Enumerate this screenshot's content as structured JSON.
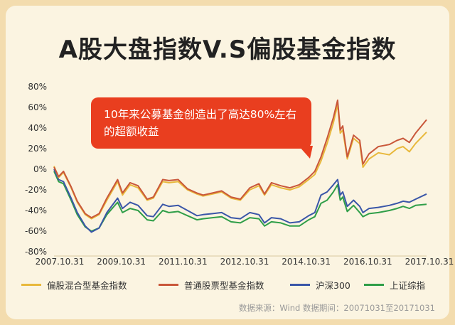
{
  "title": "A股大盘指数V.S偏股基金指数",
  "callout": "10年来公募基金创造出了高达80%左右的超额收益",
  "source": "数据来源：Wind   数据期间：20071031至20171031",
  "chart_data": {
    "type": "line",
    "x_ticks": [
      "2007.10.31",
      "2009.10.31",
      "2011.10.31",
      "2012.10.31",
      "2014.10.31",
      "2016.10.31",
      "2017.10.31"
    ],
    "xlim": [
      "2007-10-31",
      "2017-10-31"
    ],
    "y_ticks": [
      "80%",
      "60%",
      "40%",
      "20%",
      "0%",
      "-20%",
      "-40%",
      "-60%",
      "-80%"
    ],
    "ylim": [
      -80,
      80
    ],
    "legend_position": "bottom",
    "series": [
      {
        "name": "偏股混合型基金指数",
        "color": "#e8b83b",
        "points": [
          [
            "2007-10-31",
            3
          ],
          [
            "2007-12-15",
            -8
          ],
          [
            "2008-02-01",
            -3
          ],
          [
            "2008-04-15",
            -18
          ],
          [
            "2008-06-15",
            -32
          ],
          [
            "2008-09-01",
            -44
          ],
          [
            "2008-11-01",
            -48
          ],
          [
            "2009-01-15",
            -44
          ],
          [
            "2009-04-01",
            -30
          ],
          [
            "2009-07-15",
            -12
          ],
          [
            "2009-09-01",
            -25
          ],
          [
            "2009-11-15",
            -15
          ],
          [
            "2010-02-01",
            -18
          ],
          [
            "2010-05-01",
            -30
          ],
          [
            "2010-07-01",
            -28
          ],
          [
            "2010-10-01",
            -12
          ],
          [
            "2010-12-01",
            -13
          ],
          [
            "2011-03-01",
            -12
          ],
          [
            "2011-06-01",
            -20
          ],
          [
            "2011-09-01",
            -24
          ],
          [
            "2011-10-31",
            -26
          ],
          [
            "2012-02-01",
            -24
          ],
          [
            "2012-05-01",
            -22
          ],
          [
            "2012-08-01",
            -28
          ],
          [
            "2012-10-31",
            -30
          ],
          [
            "2013-02-01",
            -20
          ],
          [
            "2013-05-01",
            -16
          ],
          [
            "2013-06-25",
            -25
          ],
          [
            "2013-09-01",
            -15
          ],
          [
            "2013-12-01",
            -18
          ],
          [
            "2014-03-01",
            -20
          ],
          [
            "2014-06-01",
            -17
          ],
          [
            "2014-09-01",
            -10
          ],
          [
            "2014-10-31",
            -5
          ],
          [
            "2014-12-31",
            8
          ],
          [
            "2015-03-01",
            25
          ],
          [
            "2015-05-01",
            45
          ],
          [
            "2015-06-12",
            63
          ],
          [
            "2015-07-08",
            35
          ],
          [
            "2015-08-01",
            38
          ],
          [
            "2015-09-15",
            10
          ],
          [
            "2015-11-15",
            30
          ],
          [
            "2016-01-15",
            25
          ],
          [
            "2016-02-15",
            2
          ],
          [
            "2016-04-15",
            10
          ],
          [
            "2016-07-15",
            16
          ],
          [
            "2016-10-31",
            14
          ],
          [
            "2017-01-15",
            20
          ],
          [
            "2017-03-15",
            22
          ],
          [
            "2017-05-15",
            17
          ],
          [
            "2017-07-15",
            25
          ],
          [
            "2017-10-31",
            36
          ]
        ]
      },
      {
        "name": "普通股票型基金指数",
        "color": "#c9573a",
        "points": [
          [
            "2007-10-31",
            2
          ],
          [
            "2007-12-15",
            -7
          ],
          [
            "2008-02-01",
            -2
          ],
          [
            "2008-04-15",
            -17
          ],
          [
            "2008-06-15",
            -31
          ],
          [
            "2008-09-01",
            -43
          ],
          [
            "2008-11-01",
            -47
          ],
          [
            "2009-01-15",
            -43
          ],
          [
            "2009-04-01",
            -28
          ],
          [
            "2009-07-15",
            -10
          ],
          [
            "2009-09-01",
            -23
          ],
          [
            "2009-11-15",
            -13
          ],
          [
            "2010-02-01",
            -16
          ],
          [
            "2010-05-01",
            -29
          ],
          [
            "2010-07-01",
            -27
          ],
          [
            "2010-10-01",
            -10
          ],
          [
            "2010-12-01",
            -11
          ],
          [
            "2011-03-01",
            -10
          ],
          [
            "2011-06-01",
            -19
          ],
          [
            "2011-09-01",
            -23
          ],
          [
            "2011-10-31",
            -25
          ],
          [
            "2012-02-01",
            -23
          ],
          [
            "2012-05-01",
            -21
          ],
          [
            "2012-08-01",
            -27
          ],
          [
            "2012-10-31",
            -29
          ],
          [
            "2013-02-01",
            -18
          ],
          [
            "2013-05-01",
            -14
          ],
          [
            "2013-06-25",
            -24
          ],
          [
            "2013-09-01",
            -13
          ],
          [
            "2013-12-01",
            -16
          ],
          [
            "2014-03-01",
            -18
          ],
          [
            "2014-06-01",
            -15
          ],
          [
            "2014-09-01",
            -8
          ],
          [
            "2014-10-31",
            -2
          ],
          [
            "2014-12-31",
            12
          ],
          [
            "2015-03-01",
            30
          ],
          [
            "2015-05-01",
            50
          ],
          [
            "2015-06-12",
            67
          ],
          [
            "2015-07-08",
            38
          ],
          [
            "2015-08-01",
            42
          ],
          [
            "2015-09-15",
            12
          ],
          [
            "2015-11-15",
            33
          ],
          [
            "2016-01-15",
            28
          ],
          [
            "2016-02-15",
            5
          ],
          [
            "2016-04-15",
            15
          ],
          [
            "2016-07-15",
            22
          ],
          [
            "2016-10-31",
            24
          ],
          [
            "2017-01-15",
            28
          ],
          [
            "2017-03-15",
            30
          ],
          [
            "2017-05-15",
            26
          ],
          [
            "2017-07-15",
            35
          ],
          [
            "2017-10-31",
            48
          ]
        ]
      },
      {
        "name": "沪深300",
        "color": "#3a56a8",
        "points": [
          [
            "2007-10-31",
            0
          ],
          [
            "2007-12-15",
            -10
          ],
          [
            "2008-02-01",
            -12
          ],
          [
            "2008-04-15",
            -28
          ],
          [
            "2008-06-15",
            -42
          ],
          [
            "2008-09-01",
            -55
          ],
          [
            "2008-11-01",
            -61
          ],
          [
            "2009-01-15",
            -57
          ],
          [
            "2009-04-01",
            -42
          ],
          [
            "2009-07-15",
            -28
          ],
          [
            "2009-09-01",
            -38
          ],
          [
            "2009-11-15",
            -32
          ],
          [
            "2010-02-01",
            -35
          ],
          [
            "2010-05-01",
            -45
          ],
          [
            "2010-07-01",
            -46
          ],
          [
            "2010-10-01",
            -34
          ],
          [
            "2010-12-01",
            -36
          ],
          [
            "2011-03-01",
            -35
          ],
          [
            "2011-06-01",
            -40
          ],
          [
            "2011-09-01",
            -45
          ],
          [
            "2011-10-31",
            -44
          ],
          [
            "2012-02-01",
            -43
          ],
          [
            "2012-05-01",
            -42
          ],
          [
            "2012-08-01",
            -47
          ],
          [
            "2012-10-31",
            -48
          ],
          [
            "2013-02-01",
            -42
          ],
          [
            "2013-05-01",
            -44
          ],
          [
            "2013-06-25",
            -52
          ],
          [
            "2013-09-01",
            -47
          ],
          [
            "2013-12-01",
            -48
          ],
          [
            "2014-03-01",
            -52
          ],
          [
            "2014-06-01",
            -51
          ],
          [
            "2014-09-01",
            -45
          ],
          [
            "2014-10-31",
            -42
          ],
          [
            "2014-12-31",
            -25
          ],
          [
            "2015-03-01",
            -22
          ],
          [
            "2015-05-01",
            -15
          ],
          [
            "2015-06-12",
            -10
          ],
          [
            "2015-07-08",
            -25
          ],
          [
            "2015-08-01",
            -22
          ],
          [
            "2015-09-15",
            -36
          ],
          [
            "2015-11-15",
            -30
          ],
          [
            "2016-01-15",
            -36
          ],
          [
            "2016-02-15",
            -42
          ],
          [
            "2016-04-15",
            -38
          ],
          [
            "2016-07-15",
            -37
          ],
          [
            "2016-10-31",
            -35
          ],
          [
            "2017-01-15",
            -33
          ],
          [
            "2017-03-15",
            -31
          ],
          [
            "2017-05-15",
            -32
          ],
          [
            "2017-07-15",
            -29
          ],
          [
            "2017-10-31",
            -24
          ]
        ]
      },
      {
        "name": "上证综指",
        "color": "#2f9e48",
        "points": [
          [
            "2007-10-31",
            -2
          ],
          [
            "2007-12-15",
            -12
          ],
          [
            "2008-02-01",
            -14
          ],
          [
            "2008-04-15",
            -30
          ],
          [
            "2008-06-15",
            -44
          ],
          [
            "2008-09-01",
            -56
          ],
          [
            "2008-11-01",
            -60
          ],
          [
            "2009-01-15",
            -57
          ],
          [
            "2009-04-01",
            -44
          ],
          [
            "2009-07-15",
            -32
          ],
          [
            "2009-09-01",
            -42
          ],
          [
            "2009-11-15",
            -38
          ],
          [
            "2010-02-01",
            -40
          ],
          [
            "2010-05-01",
            -49
          ],
          [
            "2010-07-01",
            -50
          ],
          [
            "2010-10-01",
            -40
          ],
          [
            "2010-12-01",
            -42
          ],
          [
            "2011-03-01",
            -41
          ],
          [
            "2011-06-01",
            -45
          ],
          [
            "2011-09-01",
            -49
          ],
          [
            "2011-10-31",
            -48
          ],
          [
            "2012-02-01",
            -47
          ],
          [
            "2012-05-01",
            -46
          ],
          [
            "2012-08-01",
            -51
          ],
          [
            "2012-10-31",
            -52
          ],
          [
            "2013-02-01",
            -47
          ],
          [
            "2013-05-01",
            -48
          ],
          [
            "2013-06-25",
            -55
          ],
          [
            "2013-09-01",
            -51
          ],
          [
            "2013-12-01",
            -52
          ],
          [
            "2014-03-01",
            -55
          ],
          [
            "2014-06-01",
            -55
          ],
          [
            "2014-09-01",
            -49
          ],
          [
            "2014-10-31",
            -46
          ],
          [
            "2014-12-31",
            -33
          ],
          [
            "2015-03-01",
            -30
          ],
          [
            "2015-05-01",
            -22
          ],
          [
            "2015-06-12",
            -15
          ],
          [
            "2015-07-08",
            -30
          ],
          [
            "2015-08-01",
            -27
          ],
          [
            "2015-09-15",
            -41
          ],
          [
            "2015-11-15",
            -35
          ],
          [
            "2016-01-15",
            -42
          ],
          [
            "2016-02-15",
            -46
          ],
          [
            "2016-04-15",
            -43
          ],
          [
            "2016-07-15",
            -42
          ],
          [
            "2016-10-31",
            -40
          ],
          [
            "2017-01-15",
            -38
          ],
          [
            "2017-03-15",
            -36
          ],
          [
            "2017-05-15",
            -38
          ],
          [
            "2017-07-15",
            -35
          ],
          [
            "2017-10-31",
            -34
          ]
        ]
      }
    ]
  }
}
